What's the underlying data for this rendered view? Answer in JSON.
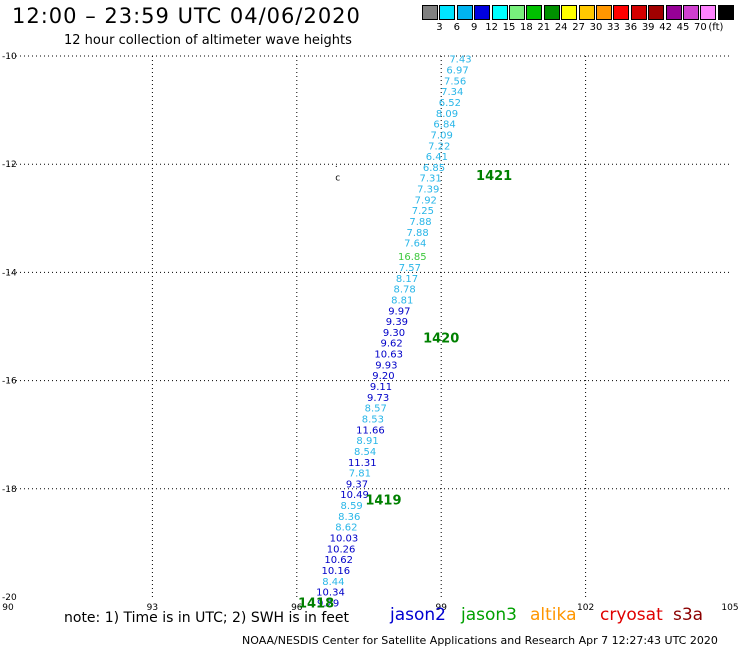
{
  "header": {
    "title": "12:00 – 23:59 UTC 04/06/2020",
    "subtitle": "12 hour collection of altimeter wave heights"
  },
  "legend": {
    "colors": [
      "#808080",
      "#00e5ff",
      "#00b4f0",
      "#0000e0",
      "#00ffff",
      "#78f07c",
      "#00c000",
      "#009000",
      "#ffff00",
      "#ffc800",
      "#ff9600",
      "#ff0000",
      "#d40000",
      "#a00000",
      "#960096",
      "#d040d0",
      "#ff82ff",
      "#000000"
    ],
    "labels": [
      "3",
      "6",
      "9",
      "12",
      "15",
      "18",
      "21",
      "24",
      "27",
      "30",
      "33",
      "36",
      "39",
      "42",
      "45",
      "70"
    ],
    "unit": "(ft)"
  },
  "chart_data": {
    "type": "scatter",
    "xlim": [
      90,
      105
    ],
    "ylim": [
      -20,
      -10
    ],
    "x_ticks": [
      "90",
      "93",
      "96",
      "99",
      "102",
      "105"
    ],
    "y_ticks": [
      "-10",
      "-12",
      "-14",
      "-16",
      "-18",
      "-20"
    ],
    "observations": [
      {
        "lon": 99.4,
        "lat": -10.05,
        "value": "7.43",
        "color": "#29b6e8"
      },
      {
        "lon": 99.34,
        "lat": -10.25,
        "value": "6.97",
        "color": "#29b6e8"
      },
      {
        "lon": 99.29,
        "lat": -10.45,
        "value": "7.56",
        "color": "#29b6e8"
      },
      {
        "lon": 99.23,
        "lat": -10.65,
        "value": "7.34",
        "color": "#29b6e8"
      },
      {
        "lon": 99.18,
        "lat": -10.85,
        "value": "6.52",
        "color": "#29b6e8"
      },
      {
        "lon": 99.12,
        "lat": -11.05,
        "value": "8.09",
        "color": "#29b6e8"
      },
      {
        "lon": 99.07,
        "lat": -11.25,
        "value": "6.84",
        "color": "#29b6e8"
      },
      {
        "lon": 99.01,
        "lat": -11.45,
        "value": "7.09",
        "color": "#29b6e8"
      },
      {
        "lon": 98.96,
        "lat": -11.65,
        "value": "7.22",
        "color": "#29b6e8"
      },
      {
        "lon": 98.91,
        "lat": -11.85,
        "value": "6.41",
        "color": "#29b6e8"
      },
      {
        "lon": 98.85,
        "lat": -12.05,
        "value": "6.85",
        "color": "#29b6e8"
      },
      {
        "lon": 98.78,
        "lat": -12.25,
        "value": "7.31",
        "color": "#29b6e8"
      },
      {
        "lon": 98.73,
        "lat": -12.45,
        "value": "7.39",
        "color": "#29b6e8"
      },
      {
        "lon": 98.68,
        "lat": -12.65,
        "value": "7.92",
        "color": "#29b6e8"
      },
      {
        "lon": 98.62,
        "lat": -12.85,
        "value": "7.25",
        "color": "#29b6e8"
      },
      {
        "lon": 98.57,
        "lat": -13.05,
        "value": "7.88",
        "color": "#29b6e8"
      },
      {
        "lon": 98.51,
        "lat": -13.25,
        "value": "7.88",
        "color": "#29b6e8"
      },
      {
        "lon": 98.46,
        "lat": -13.45,
        "value": "7.64",
        "color": "#29b6e8"
      },
      {
        "lon": 98.4,
        "lat": -13.7,
        "value": "16.85",
        "color": "#3cc83c"
      },
      {
        "lon": 98.35,
        "lat": -13.9,
        "value": "7.57",
        "color": "#29b6e8"
      },
      {
        "lon": 98.29,
        "lat": -14.1,
        "value": "8.17",
        "color": "#29b6e8"
      },
      {
        "lon": 98.24,
        "lat": -14.3,
        "value": "8.78",
        "color": "#29b6e8"
      },
      {
        "lon": 98.19,
        "lat": -14.5,
        "value": "8.81",
        "color": "#29b6e8"
      },
      {
        "lon": 98.13,
        "lat": -14.7,
        "value": "9.97",
        "color": "#0000c8"
      },
      {
        "lon": 98.08,
        "lat": -14.9,
        "value": "9.39",
        "color": "#0000c8"
      },
      {
        "lon": 98.02,
        "lat": -15.1,
        "value": "9.30",
        "color": "#0000c8"
      },
      {
        "lon": 97.97,
        "lat": -15.3,
        "value": "9.62",
        "color": "#0000c8"
      },
      {
        "lon": 97.91,
        "lat": -15.5,
        "value": "10.63",
        "color": "#0000c8"
      },
      {
        "lon": 97.86,
        "lat": -15.7,
        "value": "9.93",
        "color": "#0000c8"
      },
      {
        "lon": 97.8,
        "lat": -15.9,
        "value": "9.20",
        "color": "#0000c8"
      },
      {
        "lon": 97.75,
        "lat": -16.1,
        "value": "9.11",
        "color": "#0000c8"
      },
      {
        "lon": 97.69,
        "lat": -16.3,
        "value": "9.73",
        "color": "#0000c8"
      },
      {
        "lon": 97.64,
        "lat": -16.5,
        "value": "8.57",
        "color": "#29b6e8"
      },
      {
        "lon": 97.58,
        "lat": -16.7,
        "value": "8.53",
        "color": "#29b6e8"
      },
      {
        "lon": 97.53,
        "lat": -16.9,
        "value": "11.66",
        "color": "#0000c8"
      },
      {
        "lon": 97.47,
        "lat": -17.1,
        "value": "8.91",
        "color": "#29b6e8"
      },
      {
        "lon": 97.42,
        "lat": -17.3,
        "value": "8.54",
        "color": "#29b6e8"
      },
      {
        "lon": 97.36,
        "lat": -17.5,
        "value": "11.31",
        "color": "#0000c8"
      },
      {
        "lon": 97.31,
        "lat": -17.7,
        "value": "7.81",
        "color": "#29b6e8"
      },
      {
        "lon": 97.25,
        "lat": -17.9,
        "value": "9.37",
        "color": "#0000c8"
      },
      {
        "lon": 97.2,
        "lat": -18.1,
        "value": "10.49",
        "color": "#0000c8"
      },
      {
        "lon": 97.14,
        "lat": -18.3,
        "value": "8.59",
        "color": "#29b6e8"
      },
      {
        "lon": 97.09,
        "lat": -18.5,
        "value": "8.36",
        "color": "#29b6e8"
      },
      {
        "lon": 97.03,
        "lat": -18.7,
        "value": "8.62",
        "color": "#29b6e8"
      },
      {
        "lon": 96.98,
        "lat": -18.9,
        "value": "10.03",
        "color": "#0000c8"
      },
      {
        "lon": 96.92,
        "lat": -19.1,
        "value": "10.26",
        "color": "#0000c8"
      },
      {
        "lon": 96.87,
        "lat": -19.3,
        "value": "10.62",
        "color": "#0000c8"
      },
      {
        "lon": 96.81,
        "lat": -19.5,
        "value": "10.16",
        "color": "#0000c8"
      },
      {
        "lon": 96.76,
        "lat": -19.7,
        "value": "8.44",
        "color": "#29b6e8"
      },
      {
        "lon": 96.7,
        "lat": -19.9,
        "value": "10.34",
        "color": "#0000c8"
      },
      {
        "lon": 96.65,
        "lat": -20.1,
        "value": "9.29",
        "color": "#0000c8"
      }
    ],
    "time_labels": [
      {
        "lon": 100.1,
        "lat": -12.2,
        "text": "1421"
      },
      {
        "lon": 99.0,
        "lat": -15.2,
        "text": "1420"
      },
      {
        "lon": 97.8,
        "lat": -18.2,
        "text": "1419"
      },
      {
        "lon": 96.4,
        "lat": -20.1,
        "text": "1418"
      }
    ],
    "island_marks": [
      {
        "lon": 96.82,
        "lat": -12.0,
        "text": "."
      },
      {
        "lon": 96.85,
        "lat": -12.25,
        "text": "c"
      }
    ]
  },
  "footer": {
    "note": "note:  1) Time is in UTC; 2) SWH is in feet",
    "satellites": [
      {
        "name": "jason2",
        "color": "#0000d0"
      },
      {
        "name": "jason3",
        "color": "#00a000"
      },
      {
        "name": "altika",
        "color": "#ff9600"
      },
      {
        "name": "cryosat",
        "color": "#e00000"
      },
      {
        "name": "s3a",
        "color": "#8b0000"
      }
    ],
    "credit": "NOAA/NESDIS Center for Satellite Applications and Research   Apr  7 12:27:43 UTC 2020"
  }
}
